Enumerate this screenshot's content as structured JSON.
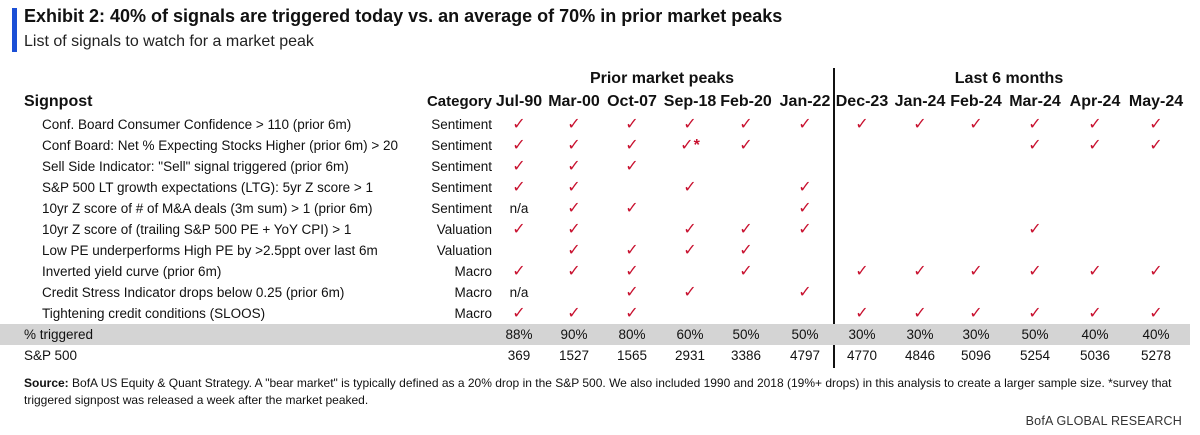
{
  "header": {
    "title": "Exhibit 2: 40% of signals are triggered today vs. an average of 70% in prior market peaks",
    "subtitle": "List of signals to watch for a market peak"
  },
  "table": {
    "group_prior": "Prior market peaks",
    "group_recent": "Last 6 months",
    "signpost_header": "Signpost",
    "category_header": "Category",
    "columns": [
      "Jul-90",
      "Mar-00",
      "Oct-07",
      "Sep-18",
      "Feb-20",
      "Jan-22",
      "Dec-23",
      "Jan-24",
      "Feb-24",
      "Mar-24",
      "Apr-24",
      "May-24"
    ],
    "rows": [
      {
        "label": "Conf. Board Consumer Confidence > 110 (prior 6m)",
        "category": "Sentiment",
        "cells": [
          "✓",
          "✓",
          "✓",
          "✓",
          "✓",
          "✓",
          "✓",
          "✓",
          "✓",
          "✓",
          "✓",
          "✓"
        ]
      },
      {
        "label": "Conf Board: Net % Expecting Stocks Higher (prior 6m) > 20",
        "category": "Sentiment",
        "cells": [
          "✓",
          "✓",
          "✓",
          "✓*",
          "✓",
          "",
          "",
          "",
          "",
          "✓",
          "✓",
          "✓"
        ]
      },
      {
        "label": "Sell Side Indicator: \"Sell\" signal triggered (prior 6m)",
        "category": "Sentiment",
        "cells": [
          "✓",
          "✓",
          "✓",
          "",
          "",
          "",
          "",
          "",
          "",
          "",
          "",
          ""
        ]
      },
      {
        "label": "S&P 500 LT growth expectations (LTG): 5yr Z score > 1",
        "category": "Sentiment",
        "cells": [
          "✓",
          "✓",
          "",
          "✓",
          "",
          "✓",
          "",
          "",
          "",
          "",
          "",
          ""
        ]
      },
      {
        "label": "10yr Z score of # of M&A deals (3m sum) > 1 (prior 6m)",
        "category": "Sentiment",
        "cells": [
          "n/a",
          "✓",
          "✓",
          "",
          "",
          "✓",
          "",
          "",
          "",
          "",
          "",
          ""
        ]
      },
      {
        "label": "10yr Z score of (trailing S&P 500 PE + YoY CPI) > 1",
        "category": "Valuation",
        "cells": [
          "✓",
          "✓",
          "",
          "✓",
          "✓",
          "✓",
          "",
          "",
          "",
          "✓",
          "",
          ""
        ]
      },
      {
        "label": "Low PE underperforms High PE by >2.5ppt over last 6m",
        "category": "Valuation",
        "cells": [
          "",
          "✓",
          "✓",
          "✓",
          "✓",
          "",
          "",
          "",
          "",
          "",
          "",
          ""
        ]
      },
      {
        "label": "Inverted yield curve (prior 6m)",
        "category": "Macro",
        "cells": [
          "✓",
          "✓",
          "✓",
          "",
          "✓",
          "",
          "✓",
          "✓",
          "✓",
          "✓",
          "✓",
          "✓"
        ]
      },
      {
        "label": "Credit Stress Indicator drops below 0.25 (prior 6m)",
        "category": "Macro",
        "cells": [
          "n/a",
          "",
          "✓",
          "✓",
          "",
          "✓",
          "",
          "",
          "",
          "",
          "",
          ""
        ]
      },
      {
        "label": "Tightening credit conditions (SLOOS)",
        "category": "Macro",
        "cells": [
          "✓",
          "✓",
          "✓",
          "",
          "",
          "",
          "✓",
          "✓",
          "✓",
          "✓",
          "✓",
          "✓"
        ]
      }
    ],
    "triggered": {
      "label": "% triggered",
      "values": [
        "88%",
        "90%",
        "80%",
        "60%",
        "50%",
        "50%",
        "30%",
        "30%",
        "30%",
        "50%",
        "40%",
        "40%"
      ]
    },
    "sp500": {
      "label": "S&P 500",
      "values": [
        "369",
        "1527",
        "1565",
        "2931",
        "3386",
        "4797",
        "4770",
        "4846",
        "5096",
        "5254",
        "5036",
        "5278"
      ]
    }
  },
  "footer": {
    "source_label": "Source:",
    "source_text": "BofA US Equity & Quant Strategy. A \"bear market\" is typically defined as a 20% drop in the S&P 500. We also included 1990 and 2018 (19%+ drops) in this analysis to create a larger sample size. *survey that triggered signpost was released a week after the market peaked.",
    "brand": "BofA GLOBAL RESEARCH"
  },
  "colors": {
    "accent": "#1b4fd6",
    "check": "#c8102e",
    "total_row_bg": "#d4d4d4"
  }
}
